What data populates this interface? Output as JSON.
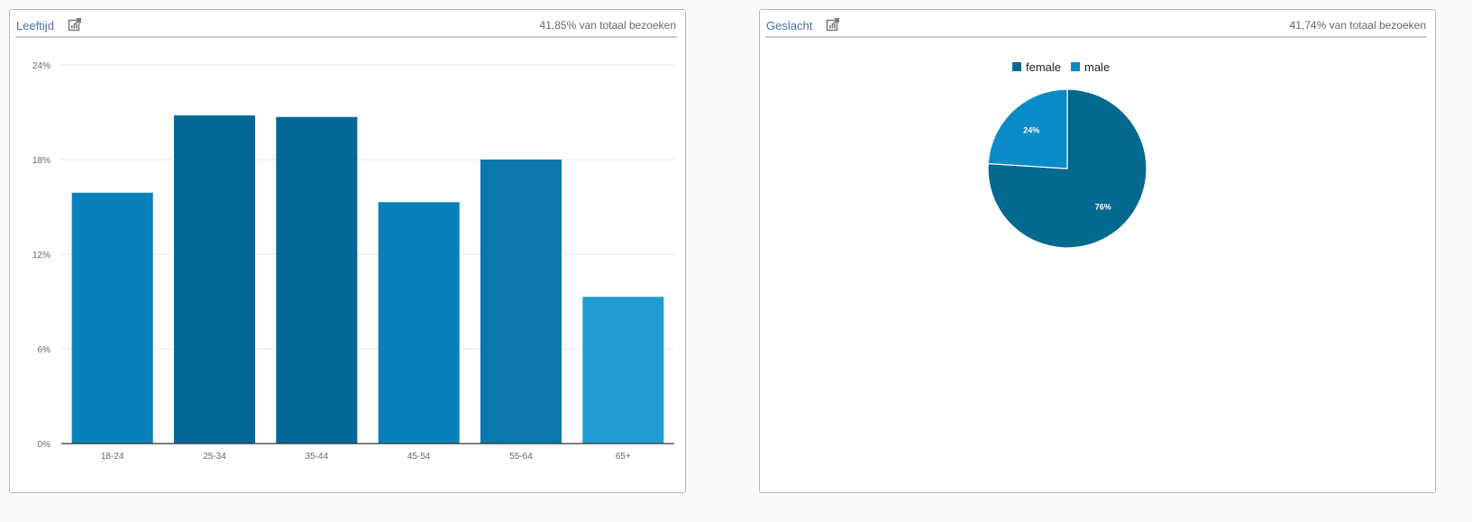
{
  "age_panel": {
    "title": "Leeftijd",
    "meta": "41,85% van totaal bezoeken",
    "icon": "explore-icon"
  },
  "gender_panel": {
    "title": "Geslacht",
    "meta": "41,74% van totaal bezoeken",
    "icon": "explore-icon"
  },
  "chart_data": [
    {
      "type": "bar",
      "categories": [
        "18-24",
        "25-34",
        "35-44",
        "45-54",
        "55-64",
        "65+"
      ],
      "values": [
        15.9,
        20.8,
        20.7,
        15.3,
        18.0,
        9.3
      ],
      "colors": [
        "#0880b9",
        "#036896",
        "#036896",
        "#0880b9",
        "#0a78ad",
        "#229bd0"
      ],
      "ylim": [
        0,
        24
      ],
      "yticks": [
        0,
        6,
        12,
        18,
        24
      ],
      "ytick_labels": [
        "0%",
        "6%",
        "12%",
        "18%",
        "24%"
      ],
      "grid": true
    },
    {
      "type": "pie",
      "labels": [
        "female",
        "male"
      ],
      "values": [
        76,
        24
      ],
      "slice_labels": [
        "76%",
        "24%"
      ],
      "colors": [
        "#04698f",
        "#0a8bc5"
      ],
      "legend": "top"
    }
  ]
}
